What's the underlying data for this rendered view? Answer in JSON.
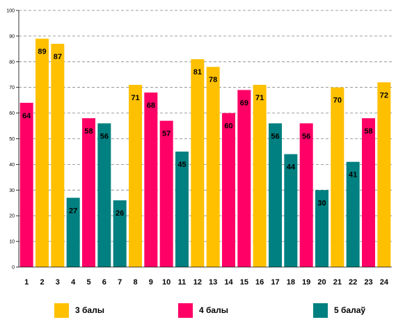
{
  "chart_data": {
    "type": "bar",
    "categories": [
      "1",
      "2",
      "3",
      "4",
      "5",
      "6",
      "7",
      "8",
      "9",
      "10",
      "11",
      "12",
      "13",
      "14",
      "15",
      "16",
      "17",
      "18",
      "19",
      "20",
      "21",
      "22",
      "23",
      "24"
    ],
    "values": [
      64,
      89,
      87,
      27,
      58,
      56,
      26,
      71,
      68,
      57,
      45,
      81,
      78,
      60,
      69,
      71,
      56,
      44,
      56,
      30,
      70,
      41,
      58,
      72
    ],
    "bar_series": [
      1,
      0,
      0,
      2,
      1,
      2,
      2,
      0,
      1,
      1,
      2,
      0,
      0,
      1,
      1,
      0,
      2,
      2,
      1,
      2,
      0,
      2,
      1,
      0
    ],
    "series": [
      {
        "name": "3 балы",
        "color": "#FFC000"
      },
      {
        "name": "4 балы",
        "color": "#FF0066"
      },
      {
        "name": "5 балаў",
        "color": "#008080"
      }
    ],
    "y_ticks": [
      "0",
      "10",
      "20",
      "30",
      "40",
      "50",
      "60",
      "70",
      "80",
      "90",
      "100"
    ],
    "ylim": [
      0,
      100
    ],
    "grid": true,
    "legend_position": "bottom",
    "title": "",
    "xlabel": "",
    "ylabel": ""
  }
}
